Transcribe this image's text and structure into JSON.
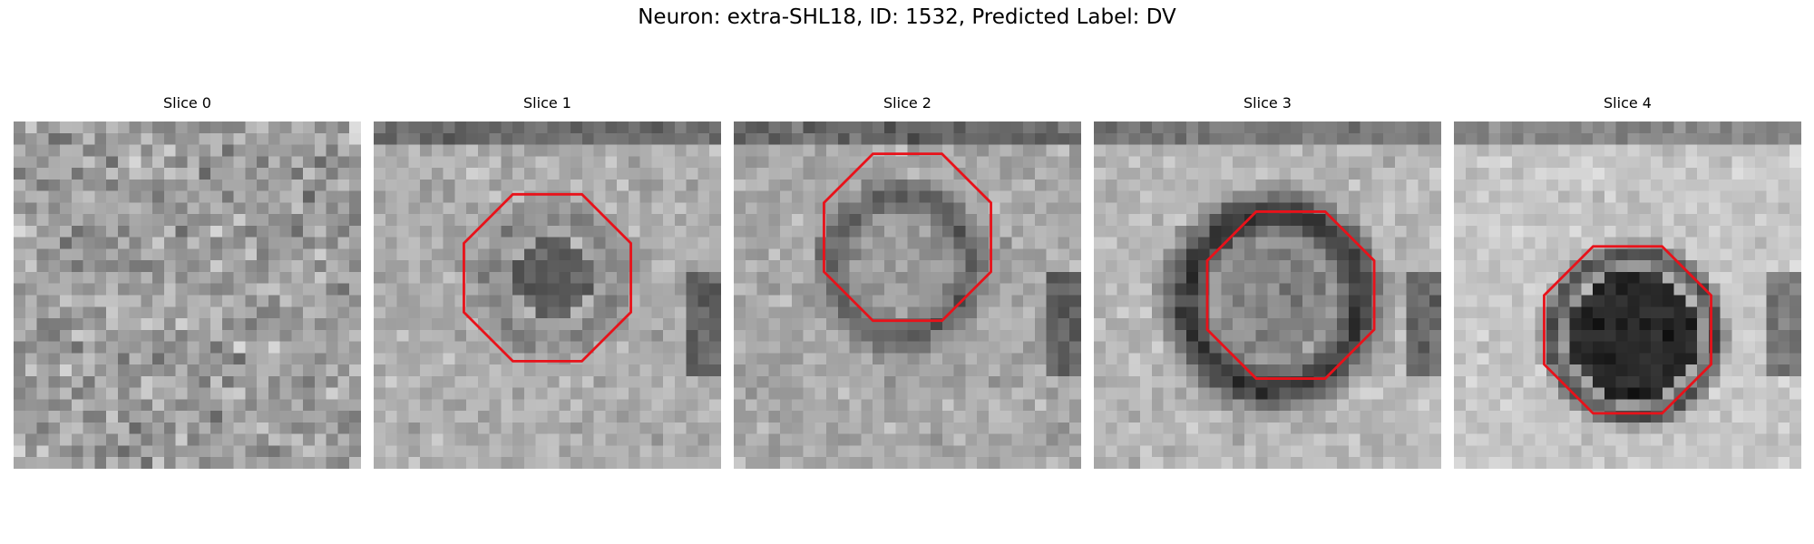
{
  "figure": {
    "title": "Neuron: extra-SHL18, ID: 1532, Predicted Label: DV",
    "overlay_color": "#e8121a",
    "panels": [
      {
        "label": "Slice 0",
        "outline": false
      },
      {
        "label": "Slice 1",
        "outline": true
      },
      {
        "label": "Slice 2",
        "outline": true
      },
      {
        "label": "Slice 3",
        "outline": true
      },
      {
        "label": "Slice 4",
        "outline": true
      }
    ]
  }
}
